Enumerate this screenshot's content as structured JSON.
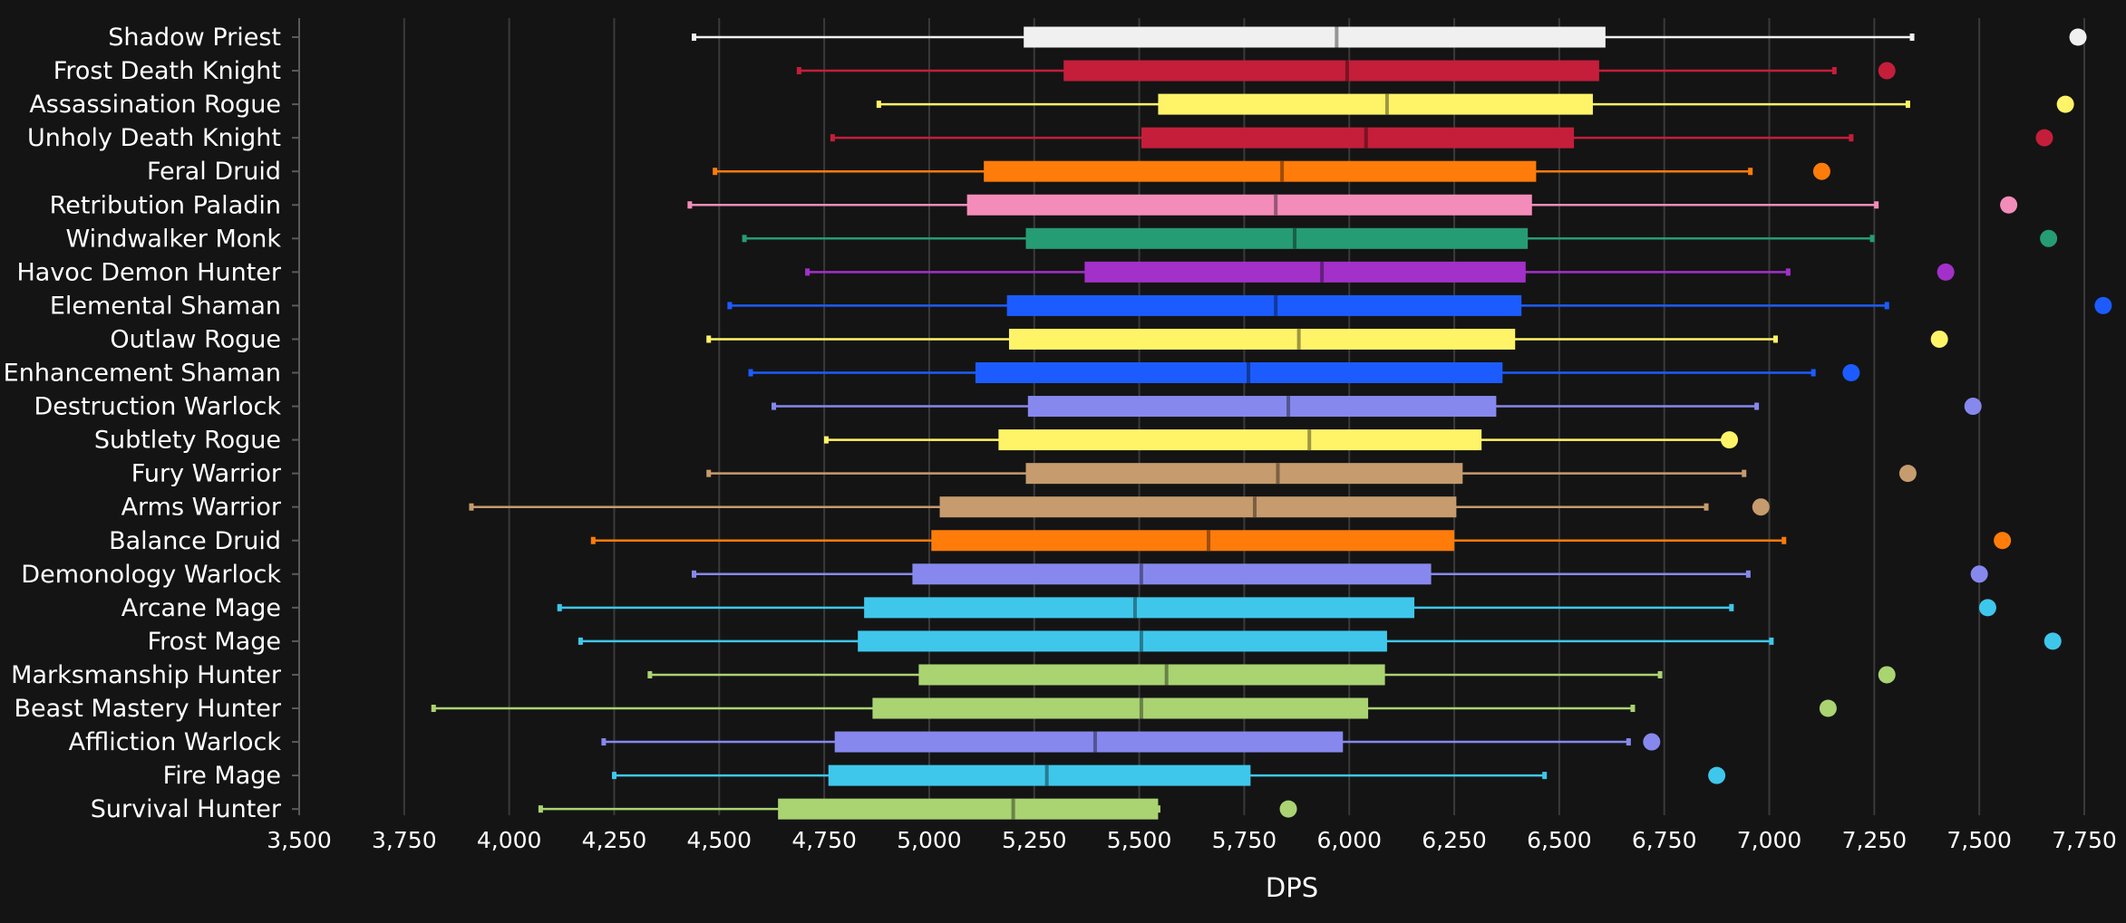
{
  "chart_data": {
    "type": "box",
    "orientation": "horizontal",
    "xlabel": "DPS",
    "ylabel": "",
    "xlim": [
      3500,
      7800
    ],
    "xticks": [
      3500,
      3750,
      4000,
      4250,
      4500,
      4750,
      5000,
      5250,
      5500,
      5750,
      6000,
      6250,
      6500,
      6750,
      7000,
      7250,
      7500,
      7750
    ],
    "xtick_labels": [
      "3,500",
      "3,750",
      "4,000",
      "4,250",
      "4,500",
      "4,750",
      "5,000",
      "5,250",
      "5,500",
      "5,750",
      "6,000",
      "6,250",
      "6,500",
      "6,750",
      "7,000",
      "7,250",
      "7,500",
      "7,750"
    ],
    "grid": "vertical",
    "categories": [
      "Shadow Priest",
      "Frost Death Knight",
      "Assassination Rogue",
      "Unholy Death Knight",
      "Feral Druid",
      "Retribution Paladin",
      "Windwalker Monk",
      "Havoc Demon Hunter",
      "Elemental Shaman",
      "Outlaw Rogue",
      "Enhancement Shaman",
      "Destruction Warlock",
      "Subtlety Rogue",
      "Fury Warrior",
      "Arms Warrior",
      "Balance Druid",
      "Demonology Warlock",
      "Arcane Mage",
      "Frost Mage",
      "Marksmanship Hunter",
      "Beast Mastery Hunter",
      "Affliction Warlock",
      "Fire Mage",
      "Survival Hunter"
    ],
    "series": [
      {
        "min": 4440,
        "q1": 5225,
        "median": 5970,
        "q3": 6610,
        "max": 7340,
        "outlier": 7735,
        "color": "#f0f0f0"
      },
      {
        "min": 4690,
        "q1": 5320,
        "median": 5995,
        "q3": 6595,
        "max": 7155,
        "outlier": 7280,
        "color": "#c41e3a"
      },
      {
        "min": 4880,
        "q1": 5545,
        "median": 6090,
        "q3": 6580,
        "max": 7330,
        "outlier": 7705,
        "color": "#fff468"
      },
      {
        "min": 4770,
        "q1": 5505,
        "median": 6040,
        "q3": 6535,
        "max": 7195,
        "outlier": 7655,
        "color": "#c41e3a"
      },
      {
        "min": 4490,
        "q1": 5130,
        "median": 5840,
        "q3": 6445,
        "max": 6955,
        "outlier": 7125,
        "color": "#ff7c0a"
      },
      {
        "min": 4430,
        "q1": 5090,
        "median": 5825,
        "q3": 6435,
        "max": 7255,
        "outlier": 7570,
        "color": "#f48cba"
      },
      {
        "min": 4560,
        "q1": 5230,
        "median": 5870,
        "q3": 6425,
        "max": 7245,
        "outlier": 7665,
        "color": "#269c74"
      },
      {
        "min": 4710,
        "q1": 5370,
        "median": 5935,
        "q3": 6420,
        "max": 7045,
        "outlier": 7420,
        "color": "#a330c9"
      },
      {
        "min": 4525,
        "q1": 5185,
        "median": 5825,
        "q3": 6410,
        "max": 7280,
        "outlier": 7795,
        "color": "#1c5cff"
      },
      {
        "min": 4475,
        "q1": 5190,
        "median": 5880,
        "q3": 6395,
        "max": 7015,
        "outlier": 7405,
        "color": "#fff468"
      },
      {
        "min": 4575,
        "q1": 5110,
        "median": 5760,
        "q3": 6365,
        "max": 7105,
        "outlier": 7195,
        "color": "#1c5cff"
      },
      {
        "min": 4630,
        "q1": 5235,
        "median": 5855,
        "q3": 6350,
        "max": 6970,
        "outlier": 7485,
        "color": "#8788ee"
      },
      {
        "min": 4755,
        "q1": 5165,
        "median": 5905,
        "q3": 6315,
        "max": 6900,
        "outlier": 6905,
        "color": "#fff468"
      },
      {
        "min": 4475,
        "q1": 5230,
        "median": 5830,
        "q3": 6270,
        "max": 6940,
        "outlier": 7330,
        "color": "#c69b6d"
      },
      {
        "min": 3910,
        "q1": 5025,
        "median": 5775,
        "q3": 6255,
        "max": 6850,
        "outlier": 6980,
        "color": "#c69b6d"
      },
      {
        "min": 4200,
        "q1": 5005,
        "median": 5665,
        "q3": 6250,
        "max": 7035,
        "outlier": 7555,
        "color": "#ff7c0a"
      },
      {
        "min": 4440,
        "q1": 4960,
        "median": 5505,
        "q3": 6195,
        "max": 6950,
        "outlier": 7500,
        "color": "#8788ee"
      },
      {
        "min": 4120,
        "q1": 4845,
        "median": 5490,
        "q3": 6155,
        "max": 6910,
        "outlier": 7520,
        "color": "#3fc7eb"
      },
      {
        "min": 4170,
        "q1": 4830,
        "median": 5505,
        "q3": 6090,
        "max": 7005,
        "outlier": 7675,
        "color": "#3fc7eb"
      },
      {
        "min": 4335,
        "q1": 4975,
        "median": 5565,
        "q3": 6085,
        "max": 6740,
        "outlier": 7280,
        "color": "#aad372"
      },
      {
        "min": 3820,
        "q1": 4865,
        "median": 5505,
        "q3": 6045,
        "max": 6675,
        "outlier": 7140,
        "color": "#aad372"
      },
      {
        "min": 4225,
        "q1": 4775,
        "median": 5395,
        "q3": 5985,
        "max": 6665,
        "outlier": 6720,
        "color": "#8788ee"
      },
      {
        "min": 4250,
        "q1": 4760,
        "median": 5280,
        "q3": 5765,
        "max": 6465,
        "outlier": 6875,
        "color": "#3fc7eb"
      },
      {
        "min": 4075,
        "q1": 4640,
        "median": 5200,
        "q3": 5545,
        "max": 5545,
        "outlier": 5855,
        "color": "#aad372"
      }
    ]
  }
}
